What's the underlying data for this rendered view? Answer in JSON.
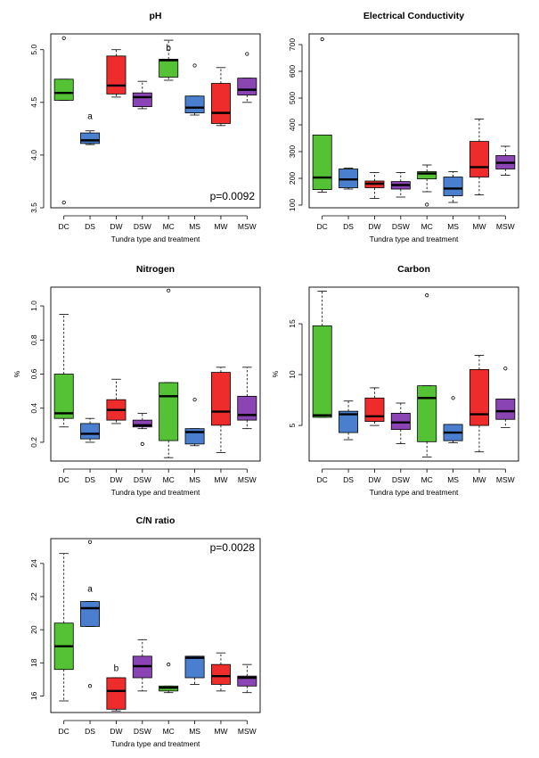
{
  "categories": [
    "DC",
    "DS",
    "DW",
    "DSW",
    "MC",
    "MS",
    "MW",
    "MSW"
  ],
  "colors": {
    "green": "#55c235",
    "blue": "#4a7fcf",
    "red": "#ee2c2c",
    "purple": "#8b44b3"
  },
  "category_colors": [
    "green",
    "blue",
    "red",
    "purple",
    "green",
    "blue",
    "red",
    "purple"
  ],
  "chart_data": [
    {
      "type": "box",
      "title": "pH",
      "xlabel": "Tundra type and treatment",
      "ylabel": "",
      "ylim": [
        3.5,
        5.15
      ],
      "yticks": [
        3.5,
        4.0,
        4.5,
        5.0
      ],
      "yticklabels": [
        "3.5",
        "4.0",
        "4.5",
        "5.0"
      ],
      "boxes": [
        {
          "category": "DC",
          "whisker_low": 4.52,
          "q1": 4.52,
          "median": 4.59,
          "q3": 4.72,
          "whisker_high": 4.72,
          "outliers": [
            5.11,
            3.55
          ]
        },
        {
          "category": "DS",
          "whisker_low": 4.1,
          "q1": 4.11,
          "median": 4.14,
          "q3": 4.21,
          "whisker_high": 4.23,
          "outliers": []
        },
        {
          "category": "DW",
          "whisker_low": 4.55,
          "q1": 4.58,
          "median": 4.66,
          "q3": 4.94,
          "whisker_high": 5.0,
          "outliers": []
        },
        {
          "category": "DSW",
          "whisker_low": 4.44,
          "q1": 4.46,
          "median": 4.55,
          "q3": 4.59,
          "whisker_high": 4.7,
          "outliers": []
        },
        {
          "category": "MC",
          "whisker_low": 4.71,
          "q1": 4.74,
          "median": 4.9,
          "q3": 4.91,
          "whisker_high": 5.09,
          "outliers": []
        },
        {
          "category": "MS",
          "whisker_low": 4.38,
          "q1": 4.4,
          "median": 4.45,
          "q3": 4.56,
          "whisker_high": 4.56,
          "outliers": [
            4.85
          ]
        },
        {
          "category": "MW",
          "whisker_low": 4.28,
          "q1": 4.3,
          "median": 4.4,
          "q3": 4.68,
          "whisker_high": 4.83,
          "outliers": []
        },
        {
          "category": "MSW",
          "whisker_low": 4.5,
          "q1": 4.57,
          "median": 4.62,
          "q3": 4.73,
          "whisker_high": 4.73,
          "outliers": [
            4.96
          ]
        }
      ],
      "letters": [
        {
          "category": "DS",
          "value": 4.34,
          "text": "a"
        },
        {
          "category": "MC",
          "value": 4.99,
          "text": "b"
        }
      ],
      "pvalue": "p=0.0092"
    },
    {
      "type": "box",
      "title": "Electrical Conductivity",
      "xlabel": "Tundra type and treatment",
      "ylabel": "",
      "ylim": [
        90,
        740
      ],
      "yticks": [
        100,
        200,
        300,
        400,
        500,
        600,
        700
      ],
      "yticklabels": [
        "100",
        "200",
        "300",
        "400",
        "500",
        "600",
        "700"
      ],
      "boxes": [
        {
          "category": "DC",
          "whisker_low": 148,
          "q1": 158,
          "median": 203,
          "q3": 362,
          "whisker_high": 362,
          "outliers": [
            720
          ]
        },
        {
          "category": "DS",
          "whisker_low": 160,
          "q1": 165,
          "median": 196,
          "q3": 235,
          "whisker_high": 238,
          "outliers": []
        },
        {
          "category": "DW",
          "whisker_low": 125,
          "q1": 165,
          "median": 180,
          "q3": 190,
          "whisker_high": 222,
          "outliers": []
        },
        {
          "category": "DSW",
          "whisker_low": 130,
          "q1": 160,
          "median": 175,
          "q3": 188,
          "whisker_high": 222,
          "outliers": []
        },
        {
          "category": "MC",
          "whisker_low": 150,
          "q1": 198,
          "median": 218,
          "q3": 225,
          "whisker_high": 250,
          "outliers": [
            102
          ]
        },
        {
          "category": "MS",
          "whisker_low": 110,
          "q1": 135,
          "median": 162,
          "q3": 205,
          "whisker_high": 225,
          "outliers": []
        },
        {
          "category": "MW",
          "whisker_low": 138,
          "q1": 205,
          "median": 242,
          "q3": 338,
          "whisker_high": 422,
          "outliers": []
        },
        {
          "category": "MSW",
          "whisker_low": 212,
          "q1": 235,
          "median": 258,
          "q3": 285,
          "whisker_high": 320,
          "outliers": []
        }
      ]
    },
    {
      "type": "box",
      "title": "Nitrogen",
      "xlabel": "Tundra type and treatment",
      "ylabel": "%",
      "ylim": [
        0.09,
        1.11
      ],
      "yticks": [
        0.2,
        0.4,
        0.6,
        0.8,
        1.0
      ],
      "yticklabels": [
        "0.2",
        "0.4",
        "0.6",
        "0.8",
        "1.0"
      ],
      "boxes": [
        {
          "category": "DC",
          "whisker_low": 0.29,
          "q1": 0.34,
          "median": 0.37,
          "q3": 0.6,
          "whisker_high": 0.95,
          "outliers": []
        },
        {
          "category": "DS",
          "whisker_low": 0.2,
          "q1": 0.22,
          "median": 0.25,
          "q3": 0.31,
          "whisker_high": 0.34,
          "outliers": []
        },
        {
          "category": "DW",
          "whisker_low": 0.31,
          "q1": 0.33,
          "median": 0.39,
          "q3": 0.45,
          "whisker_high": 0.57,
          "outliers": []
        },
        {
          "category": "DSW",
          "whisker_low": 0.28,
          "q1": 0.29,
          "median": 0.3,
          "q3": 0.33,
          "whisker_high": 0.37,
          "outliers": [
            0.19
          ]
        },
        {
          "category": "MC",
          "whisker_low": 0.11,
          "q1": 0.21,
          "median": 0.47,
          "q3": 0.55,
          "whisker_high": 0.55,
          "outliers": [
            1.09
          ]
        },
        {
          "category": "MS",
          "whisker_low": 0.18,
          "q1": 0.19,
          "median": 0.26,
          "q3": 0.28,
          "whisker_high": 0.28,
          "outliers": [
            0.45
          ]
        },
        {
          "category": "MW",
          "whisker_low": 0.14,
          "q1": 0.3,
          "median": 0.38,
          "q3": 0.61,
          "whisker_high": 0.64,
          "outliers": []
        },
        {
          "category": "MSW",
          "whisker_low": 0.28,
          "q1": 0.33,
          "median": 0.36,
          "q3": 0.47,
          "whisker_high": 0.64,
          "outliers": []
        }
      ]
    },
    {
      "type": "box",
      "title": "Carbon",
      "xlabel": "Tundra type and treatment",
      "ylabel": "%",
      "ylim": [
        1.5,
        18.6
      ],
      "yticks": [
        5,
        10,
        15
      ],
      "yticklabels": [
        "5",
        "10",
        "15"
      ],
      "boxes": [
        {
          "category": "DC",
          "whisker_low": 5.8,
          "q1": 5.8,
          "median": 6.0,
          "q3": 14.8,
          "whisker_high": 18.2,
          "outliers": []
        },
        {
          "category": "DS",
          "whisker_low": 3.6,
          "q1": 4.3,
          "median": 6.1,
          "q3": 6.4,
          "whisker_high": 7.4,
          "outliers": []
        },
        {
          "category": "DW",
          "whisker_low": 5.0,
          "q1": 5.4,
          "median": 5.9,
          "q3": 7.7,
          "whisker_high": 8.7,
          "outliers": []
        },
        {
          "category": "DSW",
          "whisker_low": 3.2,
          "q1": 4.6,
          "median": 5.3,
          "q3": 6.2,
          "whisker_high": 7.2,
          "outliers": []
        },
        {
          "category": "MC",
          "whisker_low": 1.9,
          "q1": 3.4,
          "median": 7.7,
          "q3": 8.9,
          "whisker_high": 8.9,
          "outliers": [
            17.8
          ]
        },
        {
          "category": "MS",
          "whisker_low": 3.3,
          "q1": 3.5,
          "median": 4.3,
          "q3": 5.1,
          "whisker_high": 5.1,
          "outliers": [
            7.7
          ]
        },
        {
          "category": "MW",
          "whisker_low": 2.4,
          "q1": 5.0,
          "median": 6.1,
          "q3": 10.5,
          "whisker_high": 11.9,
          "outliers": []
        },
        {
          "category": "MSW",
          "whisker_low": 4.8,
          "q1": 5.6,
          "median": 6.4,
          "q3": 7.6,
          "whisker_high": 7.6,
          "outliers": [
            10.6
          ]
        }
      ]
    },
    {
      "type": "box",
      "title": "C/N ratio",
      "xlabel": "Tundra type and treatment",
      "ylabel": "",
      "ylim": [
        15.0,
        25.5
      ],
      "yticks": [
        16,
        18,
        20,
        22,
        24
      ],
      "yticklabels": [
        "16",
        "18",
        "20",
        "22",
        "24"
      ],
      "boxes": [
        {
          "category": "DC",
          "whisker_low": 15.7,
          "q1": 17.6,
          "median": 19.0,
          "q3": 20.4,
          "whisker_high": 24.6,
          "outliers": []
        },
        {
          "category": "DS",
          "whisker_low": 20.2,
          "q1": 20.2,
          "median": 21.3,
          "q3": 21.7,
          "whisker_high": 21.7,
          "outliers": [
            25.3,
            16.6
          ]
        },
        {
          "category": "DW",
          "whisker_low": 15.1,
          "q1": 15.2,
          "median": 16.3,
          "q3": 17.1,
          "whisker_high": 17.1,
          "outliers": []
        },
        {
          "category": "DSW",
          "whisker_low": 16.3,
          "q1": 17.1,
          "median": 17.8,
          "q3": 18.4,
          "whisker_high": 19.4,
          "outliers": []
        },
        {
          "category": "MC",
          "whisker_low": 16.2,
          "q1": 16.3,
          "median": 16.5,
          "q3": 16.6,
          "whisker_high": 16.6,
          "outliers": [
            17.9
          ]
        },
        {
          "category": "MS",
          "whisker_low": 16.7,
          "q1": 17.1,
          "median": 18.3,
          "q3": 18.4,
          "whisker_high": 18.4,
          "outliers": []
        },
        {
          "category": "MW",
          "whisker_low": 16.3,
          "q1": 16.7,
          "median": 17.2,
          "q3": 17.9,
          "whisker_high": 18.6,
          "outliers": []
        },
        {
          "category": "MSW",
          "whisker_low": 16.2,
          "q1": 16.6,
          "median": 17.1,
          "q3": 17.2,
          "whisker_high": 17.9,
          "outliers": []
        }
      ],
      "letters": [
        {
          "category": "DS",
          "value": 22.3,
          "text": "a"
        },
        {
          "category": "DW",
          "value": 17.5,
          "text": "b"
        }
      ],
      "pvalue": "p=0.0028"
    }
  ]
}
